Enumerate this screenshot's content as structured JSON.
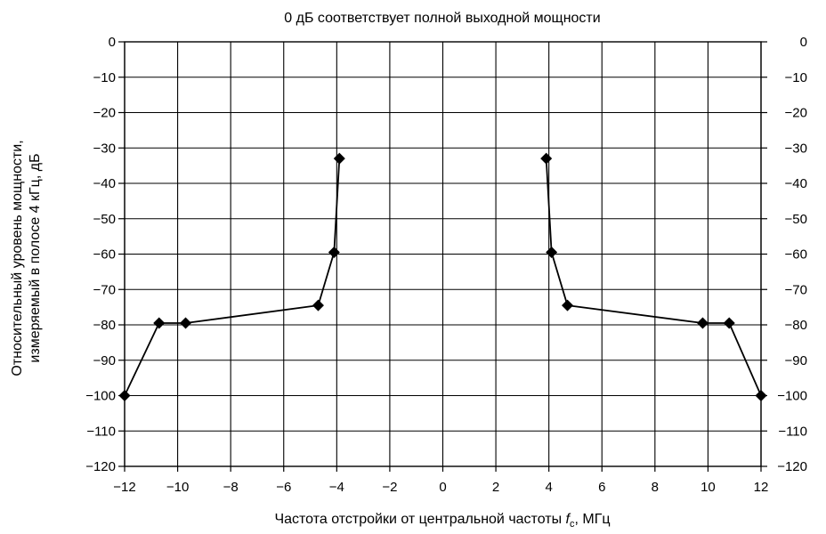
{
  "chart_data": {
    "type": "line",
    "title": "0 дБ соответствует полной выходной мощности",
    "xlabel_prefix": "Частота отстройки от центральной частоты ",
    "xlabel_symbol": "f",
    "xlabel_subscript": "c",
    "xlabel_suffix": ", МГц",
    "ylabel_line1": "Относительный уровень мощности,",
    "ylabel_line2": "измеряемый в полосе 4 кГц, дБ",
    "xlim": [
      -12,
      12
    ],
    "ylim": [
      -120,
      0
    ],
    "x_ticks": [
      -12,
      -10,
      -8,
      -6,
      -4,
      -2,
      0,
      2,
      4,
      6,
      8,
      10,
      12
    ],
    "x_tick_labels": [
      "−12",
      "−10",
      "−8",
      "−6",
      "−4",
      "−2",
      "0",
      "2",
      "4",
      "6",
      "8",
      "10",
      "12"
    ],
    "y_ticks": [
      0,
      -10,
      -20,
      -30,
      -40,
      -50,
      -60,
      -70,
      -80,
      -90,
      -100,
      -110,
      -120
    ],
    "y_tick_labels": [
      "0",
      "−10",
      "−20",
      "−30",
      "−40",
      "−50",
      "−60",
      "−70",
      "−80",
      "−90",
      "−100",
      "−110",
      "−120"
    ],
    "grid": true,
    "series": [
      {
        "x": [
          -12,
          -10.7,
          -9.7,
          -4.7,
          -4.1,
          -3.9
        ],
        "y": [
          -100,
          -79.5,
          -79.5,
          -74.5,
          -59.5,
          -33
        ]
      },
      {
        "x": [
          3.9,
          4.1,
          4.7,
          9.8,
          10.8,
          12
        ],
        "y": [
          -33,
          -59.5,
          -74.5,
          -79.5,
          -79.5,
          -100
        ]
      }
    ]
  }
}
